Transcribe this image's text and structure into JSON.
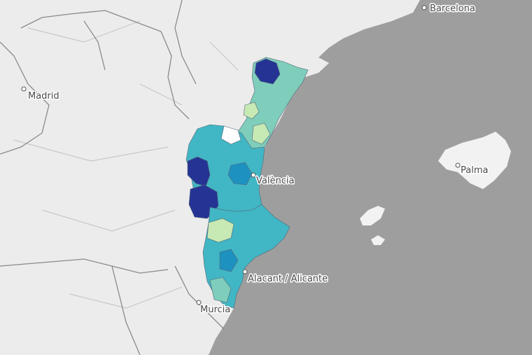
{
  "map": {
    "colors": {
      "sea": "#9e9e9e",
      "land": "#ececec",
      "island": "#f2f2f2",
      "choropleth": [
        "#ffffff",
        "#c7e9b4",
        "#7fcdbb",
        "#41b6c4",
        "#1d91c0",
        "#225ea8",
        "#253494"
      ]
    },
    "cities": [
      {
        "id": "barcelona",
        "name": "Barcelona"
      },
      {
        "id": "madrid",
        "name": "Madrid"
      },
      {
        "id": "valencia",
        "name": "València"
      },
      {
        "id": "palma",
        "name": "Palma"
      },
      {
        "id": "alicante",
        "name": "Alacant / Alicante"
      },
      {
        "id": "murcia",
        "name": "Murcia"
      }
    ]
  }
}
